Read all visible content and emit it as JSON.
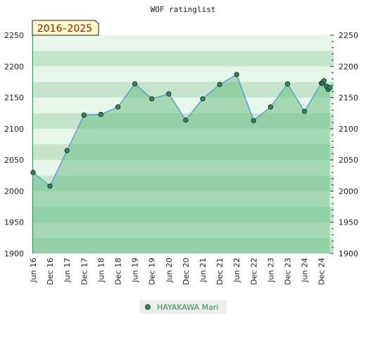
{
  "chart_data": {
    "type": "area",
    "title": "WOF ratinglist",
    "period_label": "2016–2025",
    "y_ticks": [
      1900,
      1950,
      2000,
      2050,
      2100,
      2150,
      2200,
      2250
    ],
    "ylim": [
      1900,
      2250
    ],
    "x_tick_labels": [
      "Jun 16",
      "Dec 16",
      "Jun 17",
      "Dec 17",
      "Jun 18",
      "Dec 18",
      "Jun 19",
      "Dec 19",
      "Jun 20",
      "Dec 20",
      "Jun 21",
      "Dec 21",
      "Jun 22",
      "Dec 22",
      "Jun 23",
      "Dec 23",
      "Jun 24",
      "Dec 24"
    ],
    "series": [
      {
        "name": "HAYAKAWA Mari",
        "color": "#5aa0d0",
        "marker_color": "#2e8b57",
        "x": [
          0,
          1,
          2,
          3,
          4,
          5,
          6,
          7,
          8,
          9,
          10,
          11,
          12,
          13,
          14,
          15,
          16,
          17,
          17.05,
          17.15,
          17.3,
          17.4,
          17.5
        ],
        "values": [
          2030,
          2008,
          2065,
          2122,
          2123,
          2135,
          2172,
          2148,
          2156,
          2114,
          2148,
          2171,
          2187,
          2113,
          2135,
          2172,
          2128,
          2173,
          2173,
          2177,
          2168,
          2163,
          2166
        ]
      }
    ],
    "grid": true,
    "legend_position": "bottom-center"
  }
}
